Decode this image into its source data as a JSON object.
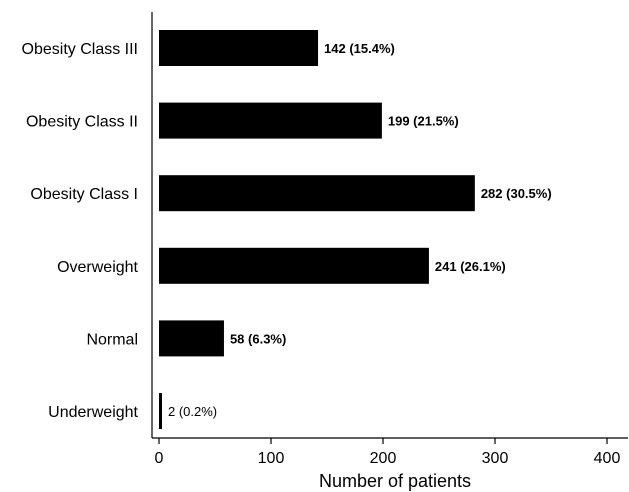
{
  "chart_data": {
    "type": "bar",
    "orientation": "horizontal",
    "categories": [
      "Obesity Class III",
      "Obesity Class II",
      "Obesity Class I",
      "Overweight",
      "Normal",
      "Underweight"
    ],
    "values": [
      142,
      199,
      282,
      241,
      58,
      2
    ],
    "data_labels": [
      "142 (15.4%)",
      "199 (21.5%)",
      "282 (30.5%)",
      "241 (26.1%)",
      "58 (6.3%)",
      "2 (0.2%)"
    ],
    "xlabel": "Number of patients",
    "ylabel": "",
    "xlim": [
      0,
      400
    ],
    "xticks": [
      "0",
      "100",
      "200",
      "300",
      "400"
    ],
    "bar_color": "#000000",
    "grid": false
  }
}
